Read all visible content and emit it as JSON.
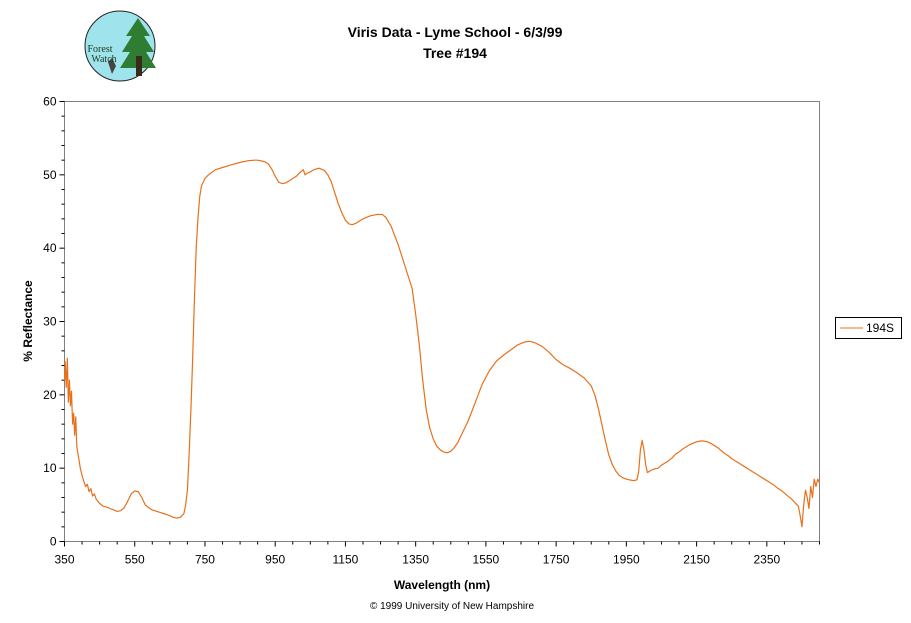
{
  "logo": {
    "text_line1": "Forest",
    "text_line2": "Watch"
  },
  "colors": {
    "series": "#e8701a",
    "frame": "#808080",
    "text": "#000000"
  },
  "chart_data": {
    "type": "line",
    "title": "Viris Data - Lyme School - 6/3/99",
    "subtitle": "Tree #194",
    "xlabel": "Wavelength (nm)",
    "ylabel": "% Reflectance",
    "xlim": [
      350,
      2500
    ],
    "ylim": [
      0,
      60
    ],
    "x_ticks": [
      350,
      550,
      750,
      950,
      1150,
      1350,
      1550,
      1750,
      1950,
      2150,
      2350
    ],
    "y_ticks": [
      0,
      10,
      20,
      30,
      40,
      50,
      60
    ],
    "grid": false,
    "legend_position": "right",
    "footer": "© 1999 University of New Hampshire",
    "series": [
      {
        "name": "194S",
        "points": [
          [
            350,
            22
          ],
          [
            352,
            24.5
          ],
          [
            355,
            21
          ],
          [
            358,
            25
          ],
          [
            361,
            19
          ],
          [
            364,
            22
          ],
          [
            367,
            18.5
          ],
          [
            370,
            20.5
          ],
          [
            373,
            16
          ],
          [
            376,
            17.5
          ],
          [
            379,
            14.5
          ],
          [
            382,
            17
          ],
          [
            385,
            13
          ],
          [
            390,
            11.5
          ],
          [
            395,
            10
          ],
          [
            400,
            9
          ],
          [
            405,
            8.2
          ],
          [
            410,
            7.5
          ],
          [
            415,
            7.8
          ],
          [
            420,
            6.8
          ],
          [
            425,
            7.2
          ],
          [
            430,
            6.2
          ],
          [
            435,
            6.5
          ],
          [
            440,
            5.8
          ],
          [
            450,
            5.2
          ],
          [
            460,
            4.8
          ],
          [
            470,
            4.7
          ],
          [
            480,
            4.5
          ],
          [
            490,
            4.3
          ],
          [
            500,
            4.1
          ],
          [
            510,
            4.2
          ],
          [
            520,
            4.6
          ],
          [
            530,
            5.5
          ],
          [
            540,
            6.5
          ],
          [
            550,
            6.9
          ],
          [
            560,
            6.8
          ],
          [
            570,
            6.0
          ],
          [
            580,
            5.0
          ],
          [
            590,
            4.6
          ],
          [
            600,
            4.3
          ],
          [
            620,
            4.0
          ],
          [
            640,
            3.7
          ],
          [
            650,
            3.5
          ],
          [
            660,
            3.3
          ],
          [
            670,
            3.2
          ],
          [
            680,
            3.3
          ],
          [
            690,
            3.8
          ],
          [
            695,
            5
          ],
          [
            700,
            7
          ],
          [
            705,
            12
          ],
          [
            710,
            18
          ],
          [
            715,
            25
          ],
          [
            720,
            33
          ],
          [
            725,
            40
          ],
          [
            730,
            44
          ],
          [
            735,
            47
          ],
          [
            740,
            48.5
          ],
          [
            750,
            49.5
          ],
          [
            760,
            50
          ],
          [
            780,
            50.7
          ],
          [
            800,
            51.0
          ],
          [
            820,
            51.3
          ],
          [
            850,
            51.7
          ],
          [
            870,
            51.9
          ],
          [
            890,
            52
          ],
          [
            900,
            52
          ],
          [
            920,
            51.8
          ],
          [
            930,
            51.5
          ],
          [
            940,
            50.8
          ],
          [
            950,
            49.8
          ],
          [
            960,
            49.0
          ],
          [
            970,
            48.8
          ],
          [
            980,
            48.9
          ],
          [
            990,
            49.2
          ],
          [
            1000,
            49.5
          ],
          [
            1010,
            49.8
          ],
          [
            1020,
            50.3
          ],
          [
            1030,
            50.7
          ],
          [
            1035,
            50.0
          ],
          [
            1040,
            50.2
          ],
          [
            1050,
            50.4
          ],
          [
            1060,
            50.7
          ],
          [
            1075,
            50.9
          ],
          [
            1090,
            50.6
          ],
          [
            1100,
            50.0
          ],
          [
            1110,
            49.0
          ],
          [
            1120,
            47.5
          ],
          [
            1130,
            46.0
          ],
          [
            1140,
            44.8
          ],
          [
            1150,
            43.8
          ],
          [
            1160,
            43.3
          ],
          [
            1170,
            43.2
          ],
          [
            1180,
            43.4
          ],
          [
            1190,
            43.7
          ],
          [
            1200,
            44.0
          ],
          [
            1220,
            44.4
          ],
          [
            1240,
            44.6
          ],
          [
            1255,
            44.6
          ],
          [
            1265,
            44.2
          ],
          [
            1280,
            43.0
          ],
          [
            1300,
            40.5
          ],
          [
            1320,
            37.5
          ],
          [
            1340,
            34.5
          ],
          [
            1350,
            31
          ],
          [
            1360,
            27
          ],
          [
            1370,
            22
          ],
          [
            1380,
            18
          ],
          [
            1390,
            15.5
          ],
          [
            1400,
            14
          ],
          [
            1410,
            13
          ],
          [
            1420,
            12.5
          ],
          [
            1430,
            12.2
          ],
          [
            1440,
            12.1
          ],
          [
            1450,
            12.3
          ],
          [
            1460,
            12.8
          ],
          [
            1470,
            13.5
          ],
          [
            1480,
            14.5
          ],
          [
            1500,
            16.5
          ],
          [
            1520,
            19
          ],
          [
            1540,
            21.5
          ],
          [
            1560,
            23.3
          ],
          [
            1580,
            24.6
          ],
          [
            1600,
            25.4
          ],
          [
            1620,
            26.1
          ],
          [
            1640,
            26.8
          ],
          [
            1660,
            27.2
          ],
          [
            1675,
            27.3
          ],
          [
            1690,
            27.1
          ],
          [
            1710,
            26.6
          ],
          [
            1730,
            25.8
          ],
          [
            1750,
            24.8
          ],
          [
            1770,
            24.1
          ],
          [
            1790,
            23.6
          ],
          [
            1810,
            23.0
          ],
          [
            1830,
            22.3
          ],
          [
            1850,
            21.2
          ],
          [
            1860,
            20.0
          ],
          [
            1870,
            18.2
          ],
          [
            1880,
            16.0
          ],
          [
            1890,
            13.8
          ],
          [
            1900,
            11.8
          ],
          [
            1910,
            10.5
          ],
          [
            1920,
            9.6
          ],
          [
            1930,
            9.0
          ],
          [
            1940,
            8.7
          ],
          [
            1950,
            8.5
          ],
          [
            1960,
            8.4
          ],
          [
            1970,
            8.3
          ],
          [
            1980,
            8.4
          ],
          [
            1985,
            9.5
          ],
          [
            1990,
            12.5
          ],
          [
            1995,
            13.8
          ],
          [
            2000,
            12.5
          ],
          [
            2005,
            10.5
          ],
          [
            2010,
            9.4
          ],
          [
            2020,
            9.7
          ],
          [
            2030,
            9.9
          ],
          [
            2040,
            10.0
          ],
          [
            2050,
            10.4
          ],
          [
            2060,
            10.7
          ],
          [
            2070,
            11.0
          ],
          [
            2080,
            11.4
          ],
          [
            2090,
            11.9
          ],
          [
            2100,
            12.2
          ],
          [
            2110,
            12.6
          ],
          [
            2120,
            12.9
          ],
          [
            2130,
            13.2
          ],
          [
            2140,
            13.4
          ],
          [
            2150,
            13.6
          ],
          [
            2160,
            13.7
          ],
          [
            2170,
            13.7
          ],
          [
            2180,
            13.6
          ],
          [
            2190,
            13.4
          ],
          [
            2200,
            13.1
          ],
          [
            2210,
            12.8
          ],
          [
            2220,
            12.4
          ],
          [
            2230,
            12.0
          ],
          [
            2240,
            11.7
          ],
          [
            2250,
            11.3
          ],
          [
            2260,
            11.0
          ],
          [
            2270,
            10.7
          ],
          [
            2280,
            10.4
          ],
          [
            2290,
            10.1
          ],
          [
            2300,
            9.8
          ],
          [
            2310,
            9.5
          ],
          [
            2320,
            9.2
          ],
          [
            2330,
            8.9
          ],
          [
            2340,
            8.6
          ],
          [
            2350,
            8.3
          ],
          [
            2360,
            8.0
          ],
          [
            2370,
            7.7
          ],
          [
            2380,
            7.3
          ],
          [
            2390,
            7.0
          ],
          [
            2400,
            6.6
          ],
          [
            2410,
            6.2
          ],
          [
            2420,
            5.8
          ],
          [
            2430,
            5.3
          ],
          [
            2440,
            4.8
          ],
          [
            2445,
            3.5
          ],
          [
            2450,
            2.0
          ],
          [
            2455,
            5.0
          ],
          [
            2460,
            7.0
          ],
          [
            2465,
            6.0
          ],
          [
            2470,
            4.5
          ],
          [
            2475,
            7.5
          ],
          [
            2480,
            6.0
          ],
          [
            2485,
            8.5
          ],
          [
            2490,
            7.5
          ],
          [
            2495,
            8.5
          ],
          [
            2500,
            8.0
          ]
        ]
      }
    ]
  }
}
